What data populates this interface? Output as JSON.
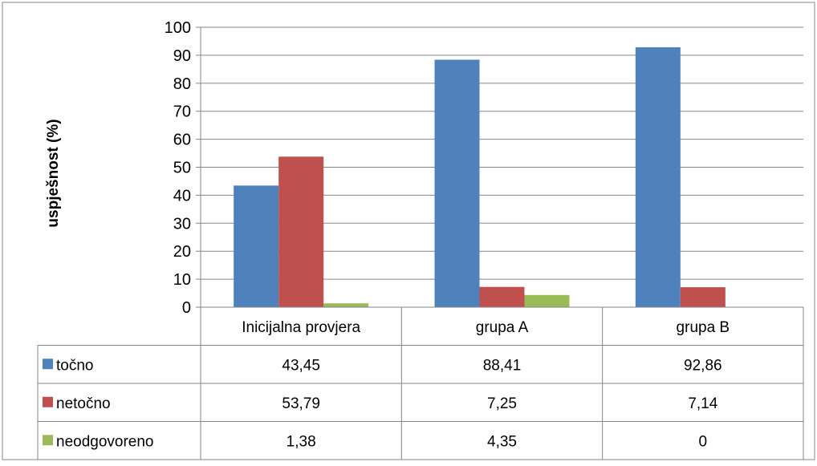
{
  "chart_data": {
    "type": "bar",
    "title": "",
    "xlabel": "",
    "ylabel": "uspješnost (%)",
    "ylim": [
      0,
      100
    ],
    "yticks": [
      "0",
      "10",
      "20",
      "30",
      "40",
      "50",
      "60",
      "70",
      "80",
      "90",
      "100"
    ],
    "categories": [
      "Inicijalna provjera",
      "grupa A",
      "grupa B"
    ],
    "grid": true,
    "legend": "data-table-left",
    "series": [
      {
        "name": "točno",
        "color": "#4F81BD",
        "values": [
          43.45,
          88.41,
          92.86
        ],
        "labels": [
          "43,45",
          "88,41",
          "92,86"
        ]
      },
      {
        "name": "netočno",
        "color": "#C0504D",
        "values": [
          53.79,
          7.25,
          7.14
        ],
        "labels": [
          "53,79",
          "7,25",
          "7,14"
        ]
      },
      {
        "name": "neodgovoreno",
        "color": "#9BBB59",
        "values": [
          1.38,
          4.35,
          0
        ],
        "labels": [
          "1,38",
          "4,35",
          "0"
        ]
      }
    ]
  }
}
